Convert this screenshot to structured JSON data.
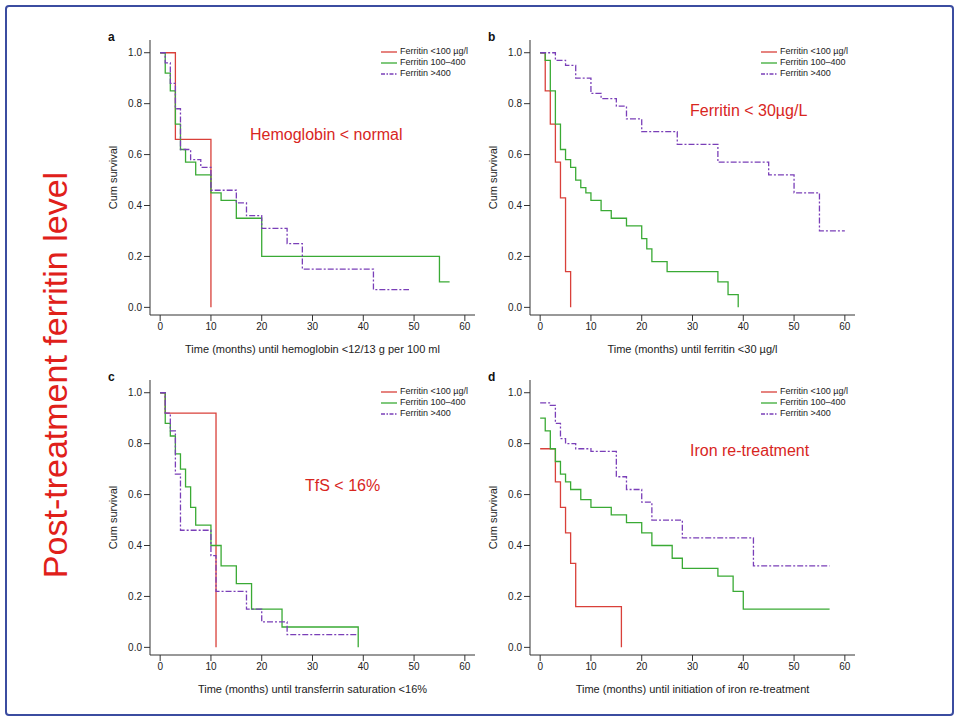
{
  "side_title": "Post-treatment ferritin level",
  "chart_data": [
    {
      "type": "step",
      "panel": "a",
      "annotation": "Hemoglobin < normal",
      "xlabel": "Time (months) until hemoglobin <12/13 g per 100 ml",
      "ylabel": "Cum survival",
      "legend": "upper right",
      "xlim": [
        -2,
        62
      ],
      "xticks": [
        0,
        10,
        20,
        30,
        40,
        50,
        60
      ],
      "ylim": [
        -0.03,
        1.05
      ],
      "yticks": [
        {
          "value": 0,
          "label": "0.0"
        },
        0.2,
        0.4,
        0.6,
        0.8,
        {
          "value": 1,
          "label": "1.0"
        }
      ],
      "series": [
        {
          "name": "Ferritin <100 µg/l",
          "color": "#d9403a",
          "line_style": "solid",
          "x": [
            0,
            3,
            10
          ],
          "values": [
            1.0,
            0.66,
            0.0
          ]
        },
        {
          "name": "Ferritin 100–400",
          "color": "#3aaa35",
          "line_style": "solid",
          "x": [
            0,
            1,
            2,
            3,
            4,
            5,
            7,
            10,
            12,
            15,
            20,
            28,
            55,
            57
          ],
          "values": [
            1.0,
            0.92,
            0.85,
            0.72,
            0.62,
            0.57,
            0.52,
            0.45,
            0.42,
            0.35,
            0.2,
            0.2,
            0.1,
            0.1
          ]
        },
        {
          "name": "Ferritin >400",
          "color": "#7a3fb8",
          "line_style": "dashed",
          "x": [
            0,
            1,
            2,
            3,
            4,
            6,
            8,
            10,
            12,
            15,
            17,
            20,
            25,
            28,
            32,
            42,
            49
          ],
          "values": [
            1.0,
            0.96,
            0.88,
            0.78,
            0.62,
            0.58,
            0.55,
            0.46,
            0.46,
            0.41,
            0.36,
            0.31,
            0.25,
            0.15,
            0.15,
            0.07,
            0.07
          ]
        }
      ]
    },
    {
      "type": "step",
      "panel": "b",
      "annotation": "Ferritin < 30µg/L",
      "xlabel": "Time (months) until ferritin <30 µg/l",
      "ylabel": "Cum survival",
      "legend": "upper right",
      "xlim": [
        -2,
        62
      ],
      "xticks": [
        0,
        10,
        20,
        30,
        40,
        50,
        60
      ],
      "ylim": [
        -0.03,
        1.05
      ],
      "yticks": [
        {
          "value": 0,
          "label": "0.0"
        },
        0.2,
        0.4,
        0.6,
        0.8,
        {
          "value": 1,
          "label": "1.0"
        }
      ],
      "series": [
        {
          "name": "Ferritin <100 µg/l",
          "color": "#d9403a",
          "line_style": "solid",
          "x": [
            0,
            1,
            2,
            3,
            4,
            5,
            6
          ],
          "values": [
            1.0,
            0.85,
            0.72,
            0.57,
            0.43,
            0.14,
            0.0
          ]
        },
        {
          "name": "Ferritin 100–400",
          "color": "#3aaa35",
          "line_style": "solid",
          "x": [
            0,
            1,
            2,
            3,
            4,
            5,
            6,
            7,
            8,
            9,
            10,
            12,
            14,
            17,
            20,
            21,
            22,
            25,
            27,
            35,
            37,
            39
          ],
          "values": [
            1.0,
            0.97,
            0.85,
            0.72,
            0.62,
            0.58,
            0.55,
            0.5,
            0.47,
            0.45,
            0.42,
            0.38,
            0.35,
            0.32,
            0.27,
            0.23,
            0.18,
            0.14,
            0.14,
            0.1,
            0.05,
            0.0
          ]
        },
        {
          "name": "Ferritin >400",
          "color": "#7a3fb8",
          "line_style": "dashed",
          "x": [
            0,
            3,
            5,
            7,
            10,
            12,
            15,
            17,
            20,
            25,
            27,
            35,
            45,
            50,
            55,
            60
          ],
          "values": [
            1.0,
            0.97,
            0.95,
            0.9,
            0.84,
            0.82,
            0.79,
            0.74,
            0.69,
            0.69,
            0.64,
            0.57,
            0.52,
            0.45,
            0.3,
            0.3
          ]
        }
      ]
    },
    {
      "type": "step",
      "panel": "c",
      "annotation": "TfS < 16%",
      "xlabel": "Time (months) until transferrin saturation <16%",
      "ylabel": "Cum survival",
      "legend": "upper right",
      "xlim": [
        -2,
        62
      ],
      "xticks": [
        0,
        10,
        20,
        30,
        40,
        50,
        60
      ],
      "ylim": [
        -0.03,
        1.05
      ],
      "yticks": [
        {
          "value": 0,
          "label": "0.0"
        },
        0.2,
        0.4,
        0.6,
        0.8,
        {
          "value": 1,
          "label": "1.0"
        }
      ],
      "series": [
        {
          "name": "Ferritin <100 µg/l",
          "color": "#d9403a",
          "line_style": "solid",
          "x": [
            0,
            1,
            11
          ],
          "values": [
            1.0,
            0.92,
            0.0
          ]
        },
        {
          "name": "Ferritin 100–400",
          "color": "#3aaa35",
          "line_style": "solid",
          "x": [
            0,
            1,
            2,
            3,
            4,
            5,
            6,
            7,
            8,
            10,
            12,
            15,
            18,
            24,
            39
          ],
          "values": [
            1.0,
            0.88,
            0.83,
            0.76,
            0.7,
            0.63,
            0.55,
            0.48,
            0.48,
            0.4,
            0.32,
            0.25,
            0.15,
            0.08,
            0.0
          ]
        },
        {
          "name": "Ferritin >400",
          "color": "#7a3fb8",
          "line_style": "dashed",
          "x": [
            0,
            1,
            2,
            3,
            4,
            10,
            11,
            13,
            17,
            20,
            25,
            39
          ],
          "values": [
            1.0,
            0.92,
            0.85,
            0.68,
            0.46,
            0.36,
            0.22,
            0.22,
            0.15,
            0.1,
            0.05,
            0.05
          ]
        }
      ]
    },
    {
      "type": "step",
      "panel": "d",
      "annotation": "Iron re-treatment",
      "xlabel": "Time (months) until initiation of iron re-treatment",
      "ylabel": "Cum survival",
      "legend": "upper right",
      "xlim": [
        -2,
        62
      ],
      "xticks": [
        0,
        10,
        20,
        30,
        40,
        50,
        60
      ],
      "ylim": [
        -0.03,
        1.05
      ],
      "yticks": [
        {
          "value": 0,
          "label": "0.0"
        },
        0.2,
        0.4,
        0.6,
        0.8,
        {
          "value": 1,
          "label": "1.0"
        }
      ],
      "series": [
        {
          "name": "Ferritin <100 µg/l",
          "color": "#d9403a",
          "line_style": "solid",
          "x": [
            0,
            3,
            4,
            5,
            6,
            7,
            16
          ],
          "values": [
            0.78,
            0.65,
            0.55,
            0.45,
            0.33,
            0.16,
            0.0
          ]
        },
        {
          "name": "Ferritin 100–400",
          "color": "#3aaa35",
          "line_style": "solid",
          "x": [
            0,
            1,
            2,
            3,
            4,
            5,
            6,
            8,
            10,
            14,
            17,
            20,
            22,
            26,
            28,
            35,
            38,
            40,
            47,
            57
          ],
          "values": [
            0.9,
            0.85,
            0.78,
            0.73,
            0.68,
            0.65,
            0.62,
            0.58,
            0.55,
            0.52,
            0.49,
            0.45,
            0.4,
            0.35,
            0.31,
            0.28,
            0.22,
            0.15,
            0.15,
            0.15
          ]
        },
        {
          "name": "Ferritin >400",
          "color": "#7a3fb8",
          "line_style": "dashed",
          "x": [
            0,
            2,
            3,
            4,
            5,
            7,
            10,
            15,
            17,
            20,
            22,
            25,
            28,
            37,
            42,
            57
          ],
          "values": [
            0.96,
            0.95,
            0.88,
            0.82,
            0.8,
            0.78,
            0.77,
            0.67,
            0.62,
            0.57,
            0.5,
            0.5,
            0.43,
            0.43,
            0.32,
            0.32
          ]
        }
      ]
    }
  ]
}
